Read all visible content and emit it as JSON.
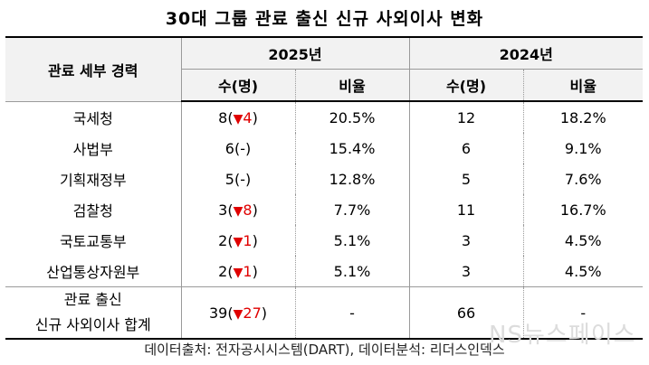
{
  "title": "30대 그룹 관료 출신 신규 사외이사 변화",
  "header": {
    "row_label": "관료 세부 경력",
    "year_2025": "2025년",
    "year_2024": "2024년",
    "count_label": "수(명)",
    "ratio_label": "비율"
  },
  "rows": [
    {
      "name": "국세청",
      "c25": "8",
      "change": "4",
      "change_symbol": "▼",
      "r25": "20.5%",
      "c24": "12",
      "r24": "18.2%"
    },
    {
      "name": "사법부",
      "c25": "6",
      "change": "-",
      "change_symbol": "",
      "r25": "15.4%",
      "c24": "6",
      "r24": "9.1%"
    },
    {
      "name": "기획재정부",
      "c25": "5",
      "change": "-",
      "change_symbol": "",
      "r25": "12.8%",
      "c24": "5",
      "r24": "7.6%"
    },
    {
      "name": "검찰청",
      "c25": "3",
      "change": "8",
      "change_symbol": "▼",
      "r25": "7.7%",
      "c24": "11",
      "r24": "16.7%"
    },
    {
      "name": "국토교통부",
      "c25": "2",
      "change": "1",
      "change_symbol": "▼",
      "r25": "5.1%",
      "c24": "3",
      "r24": "4.5%"
    },
    {
      "name": "산업통상자원부",
      "c25": "2",
      "change": "1",
      "change_symbol": "▼",
      "r25": "5.1%",
      "c24": "3",
      "r24": "4.5%"
    }
  ],
  "total": {
    "name_line1": "관료 출신",
    "name_line2": "신규 사외이사 합계",
    "c25": "39",
    "change": "27",
    "change_symbol": "▼",
    "r25": "-",
    "c24": "66",
    "r24": "-"
  },
  "footer": "데이터출처: 전자공시시스템(DART), 데이터분석: 리더스인덱스",
  "watermark": "NS뉴스페이스",
  "colors": {
    "decrease": "#e00000",
    "header_bg": "#f2f2f2"
  }
}
